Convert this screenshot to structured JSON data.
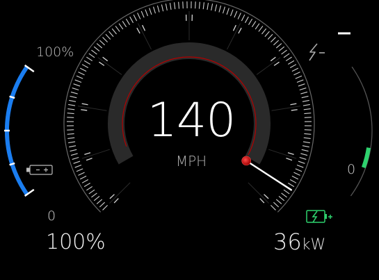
{
  "speedometer": {
    "speed": "140",
    "unit": "MPH",
    "accent": "#d40000"
  },
  "battery": {
    "top_label": "100%",
    "bottom_label": "0",
    "percent": "100%",
    "level_fraction": 1.0,
    "icon": "battery-icon",
    "color": "#1a7df0"
  },
  "power": {
    "zero_label": "0",
    "value": "36",
    "unit": "kW",
    "regen_fraction": 0.25,
    "charge_icon": "battery-charging-icon",
    "drain_icon": "lightning-minus-icon",
    "regen_color": "#2ed26e"
  }
}
